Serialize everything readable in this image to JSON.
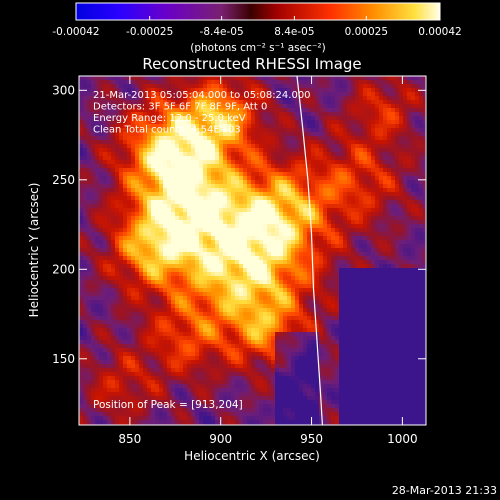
{
  "chart_data": {
    "type": "heatmap",
    "title": "Reconstructed RHESSI Image",
    "xlabel": "Heliocentric X (arcsec)",
    "ylabel": "Heliocentric Y (arcsec)",
    "xlim": [
      822,
      1013
    ],
    "ylim": [
      113,
      308
    ],
    "x_ticks": [
      850,
      900,
      950,
      1000
    ],
    "y_ticks": [
      150,
      200,
      250,
      300
    ],
    "colorbar": {
      "range": [
        -0.00042,
        0.00042
      ],
      "tick_values": [
        -0.00042,
        -0.00025,
        -8.4e-05,
        8.4e-05,
        0.00025,
        0.00042
      ],
      "tick_labels": [
        "-0.00042",
        "-0.00025",
        "-8.4e-05",
        "8.4e-05",
        "0.00025",
        "0.00042"
      ],
      "unit_label": "(photons cm⁻² s⁻¹ asec⁻²)"
    },
    "annotations": [
      "21-Mar-2013 05:05:04.000 to 05:08:24.000",
      "Detectors: 3F 5F 6F 7F 8F 9F, Att 0",
      "Energy Range: 12.0 - 25.0 keV",
      "Clean     Total counts: 4.54E+03"
    ],
    "peak_text": "Position of Peak = [913,204]",
    "peak": [
      913,
      204
    ],
    "limb_curve": [
      [
        942,
        308
      ],
      [
        945,
        280
      ],
      [
        948,
        250
      ],
      [
        950,
        220
      ],
      [
        951,
        190
      ],
      [
        953,
        160
      ],
      [
        955,
        130
      ],
      [
        956,
        113
      ]
    ]
  },
  "footer_timestamp": "28-Mar-2013 21:33"
}
